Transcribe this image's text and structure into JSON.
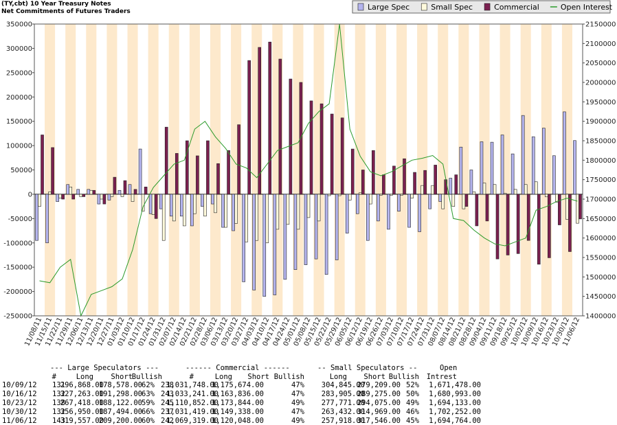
{
  "chart_data": {
    "type": "bar",
    "title": "(TY,cbt) 10 Year Treasury Notes",
    "subtitle": "Net Commitments of Futures Traders",
    "categories": [
      "11/08/11",
      "11/15/11",
      "11/22/11",
      "11/29/11",
      "12/06/11",
      "12/13/11",
      "12/20/11",
      "12/27/11",
      "01/03/12",
      "01/10/12",
      "01/17/12",
      "01/24/12",
      "01/31/12",
      "02/07/12",
      "02/14/12",
      "02/21/12",
      "02/28/12",
      "03/06/12",
      "03/13/12",
      "03/20/12",
      "03/27/12",
      "04/03/12",
      "04/10/12",
      "04/17/12",
      "04/24/12",
      "05/01/12",
      "05/08/12",
      "05/15/12",
      "05/22/12",
      "05/29/12",
      "06/05/12",
      "06/12/12",
      "06/19/12",
      "06/26/12",
      "07/03/12",
      "07/10/12",
      "07/17/12",
      "07/24/12",
      "07/31/12",
      "08/07/12",
      "08/14/12",
      "08/21/12",
      "08/28/12",
      "09/04/12",
      "09/11/12",
      "09/18/12",
      "09/25/12",
      "10/02/12",
      "10/09/12",
      "10/16/12",
      "10/23/12",
      "10/30/12",
      "11/06/12"
    ],
    "series": [
      {
        "name": "Large Spec",
        "type": "bar",
        "color": "#b4b4ee",
        "values": [
          -95000,
          -100000,
          -15000,
          20000,
          10000,
          10000,
          -20000,
          -12000,
          8000,
          20000,
          93000,
          -40000,
          -30000,
          -45000,
          -45000,
          -65000,
          -25000,
          -20000,
          -68000,
          -75000,
          -180000,
          -197000,
          -210000,
          -207000,
          -175000,
          -155000,
          -145000,
          -133000,
          -165000,
          -135000,
          -80000,
          -40000,
          -95000,
          -55000,
          -72000,
          -35000,
          -68000,
          -77000,
          -30000,
          -15000,
          33000,
          97000,
          50000,
          108000,
          107000,
          122000,
          83000,
          162000,
          118290,
          135965,
          79296,
          169456,
          110357
        ]
      },
      {
        "name": "Small Spec",
        "type": "bar",
        "color": "#fffadc",
        "values": [
          -25000,
          5000,
          -8000,
          15000,
          -5000,
          8000,
          -10000,
          -5000,
          -5000,
          -15000,
          -35000,
          -42000,
          -95000,
          -55000,
          -65000,
          -40000,
          -45000,
          -38000,
          -68000,
          -60000,
          -98000,
          -95000,
          -100000,
          -72000,
          -62000,
          -72000,
          -48000,
          -55000,
          -3000,
          -3000,
          -12000,
          3000,
          -20000,
          -2000,
          -2000,
          -2000,
          -8000,
          18000,
          18000,
          -30000,
          -25000,
          -30000,
          5000,
          23000,
          20000,
          2000,
          10000,
          20000,
          25636,
          -5370,
          -16304,
          -51537,
          -59628
        ]
      },
      {
        "name": "Commercial",
        "type": "bar",
        "color": "#7b2050",
        "values": [
          122000,
          96000,
          -10000,
          -10000,
          -5000,
          8000,
          -20000,
          35000,
          28000,
          10000,
          15000,
          -50000,
          138000,
          84000,
          110000,
          79000,
          110000,
          63000,
          90000,
          143000,
          275000,
          302000,
          313000,
          278000,
          237000,
          230000,
          192000,
          186000,
          165000,
          157000,
          93000,
          50000,
          90000,
          40000,
          58000,
          73000,
          45000,
          49000,
          60000,
          30000,
          40000,
          -25000,
          -65000,
          -55000,
          -133000,
          -125000,
          -122000,
          -95000,
          -143926,
          -130595,
          -62992,
          -117919,
          -50729
        ]
      },
      {
        "name": "Open Interest",
        "type": "line",
        "axis": "y2",
        "color": "#2a9a2a",
        "values": [
          1490000,
          1485000,
          1525000,
          1545000,
          1400000,
          1455000,
          1465000,
          1475000,
          1495000,
          1570000,
          1680000,
          1730000,
          1760000,
          1790000,
          1800000,
          1880000,
          1900000,
          1860000,
          1830000,
          1790000,
          1780000,
          1755000,
          1790000,
          1825000,
          1835000,
          1845000,
          1895000,
          1925000,
          1945000,
          2150000,
          1880000,
          1810000,
          1770000,
          1760000,
          1770000,
          1785000,
          1800000,
          1805000,
          1812000,
          1790000,
          1650000,
          1645000,
          1620000,
          1600000,
          1585000,
          1580000,
          1590000,
          1600000,
          1671478,
          1680993,
          1694133,
          1702252,
          1694764
        ]
      }
    ],
    "ylim": [
      -250000,
      350000
    ],
    "yticks": [
      350000,
      300000,
      250000,
      200000,
      150000,
      100000,
      50000,
      0,
      -50000,
      -100000,
      -150000,
      -200000,
      -250000
    ],
    "y2lim": [
      1400000,
      2150000
    ],
    "y2ticks": [
      2150000,
      2100000,
      2050000,
      2000000,
      1950000,
      1900000,
      1850000,
      1800000,
      1750000,
      1700000,
      1650000,
      1600000,
      1550000,
      1500000,
      1450000,
      1400000
    ],
    "legend": "top-right"
  },
  "table": {
    "group_headers": [
      "--- Large Speculators ---",
      "------ Commercial ------",
      "-- Small Speculators --",
      "Open"
    ],
    "columns": [
      "#",
      "Long",
      "Short",
      "Bullish",
      "#",
      "Long",
      "Short",
      "Bullish",
      "Long",
      "Short",
      "Bullish",
      "Intrest"
    ],
    "rows": [
      [
        "10/09/12",
        "131",
        "296,868.00",
        "178,578.00",
        "62%",
        "238",
        "1,031,748.00",
        "1,175,674.00",
        "47%",
        "304,845.00",
        "279,209.00",
        "52%",
        "1,671,478.00"
      ],
      [
        "10/16/12",
        "132",
        "327,263.00",
        "191,298.00",
        "63%",
        "243",
        "1,033,241.00",
        "1,163,836.00",
        "47%",
        "283,905.00",
        "289,275.00",
        "50%",
        "1,680,993.00"
      ],
      [
        "10/23/12",
        "138",
        "267,418.00",
        "188,122.00",
        "59%",
        "245",
        "1,110,852.00",
        "1,173,844.00",
        "49%",
        "277,771.00",
        "294,075.00",
        "49%",
        "1,694,133.00"
      ],
      [
        "10/30/12",
        "132",
        "356,950.00",
        "187,494.00",
        "66%",
        "237",
        "1,031,419.00",
        "1,149,338.00",
        "47%",
        "263,432.00",
        "314,969.00",
        "46%",
        "1,702,252.00"
      ],
      [
        "11/06/12",
        "143",
        "319,557.00",
        "209,200.00",
        "60%",
        "242",
        "1,069,319.00",
        "1,120,048.00",
        "49%",
        "257,918.00",
        "317,546.00",
        "45%",
        "1,694,764.00"
      ]
    ]
  }
}
